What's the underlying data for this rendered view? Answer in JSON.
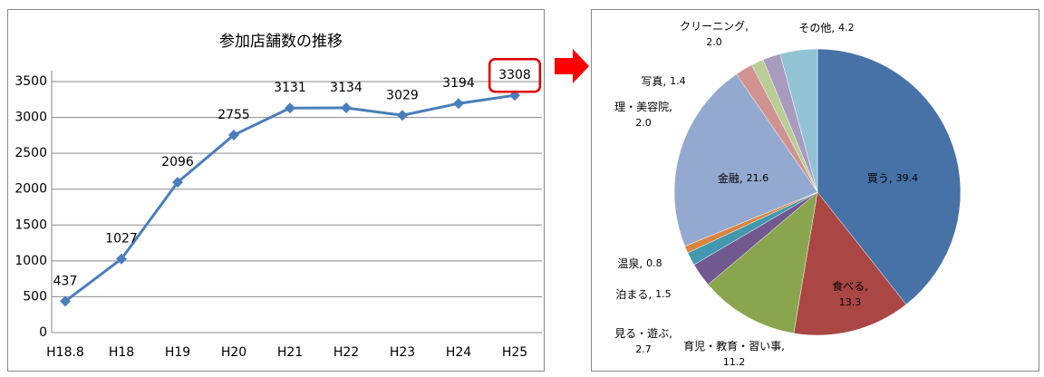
{
  "chart_data": [
    {
      "type": "line",
      "title": "参加店舗数の推移",
      "categories": [
        "H18.8",
        "H18",
        "H19",
        "H20",
        "H21",
        "H22",
        "H23",
        "H24",
        "H25"
      ],
      "series": [
        {
          "name": "参加店舗数",
          "color": "#4a7ebb",
          "values": [
            437,
            1027,
            2096,
            2755,
            3131,
            3134,
            3029,
            3194,
            3308
          ]
        }
      ],
      "ylim": [
        0,
        3500
      ],
      "yticks": [
        0,
        500,
        1000,
        1500,
        2000,
        2500,
        3000,
        3500
      ],
      "grid": true,
      "legend": false
    },
    {
      "type": "pie",
      "categories": [
        "買う,",
        "食べる,",
        "育児・教育・習い事,",
        "見る・遊ぶ,",
        "泊まる,",
        "温泉,",
        "金融,",
        "理・美容院,",
        "写真,",
        "クリーニング,",
        "その他,"
      ],
      "values": [
        39.4,
        13.3,
        11.2,
        2.7,
        1.5,
        0.8,
        21.6,
        2,
        1.4,
        2,
        4.2
      ],
      "value_labels": [
        "39.4",
        "13.3",
        "11.2",
        "2.7",
        "1.5",
        "0.8",
        "21.6",
        "2.0",
        "1.4",
        "2.0",
        "4.2"
      ],
      "colors": [
        "#4672a8",
        "#aa4643",
        "#89a54e",
        "#71588f",
        "#4198af",
        "#db843d",
        "#93a9cf",
        "#d19392",
        "#b9cd96",
        "#a99bbd",
        "#92c3d4"
      ]
    }
  ]
}
